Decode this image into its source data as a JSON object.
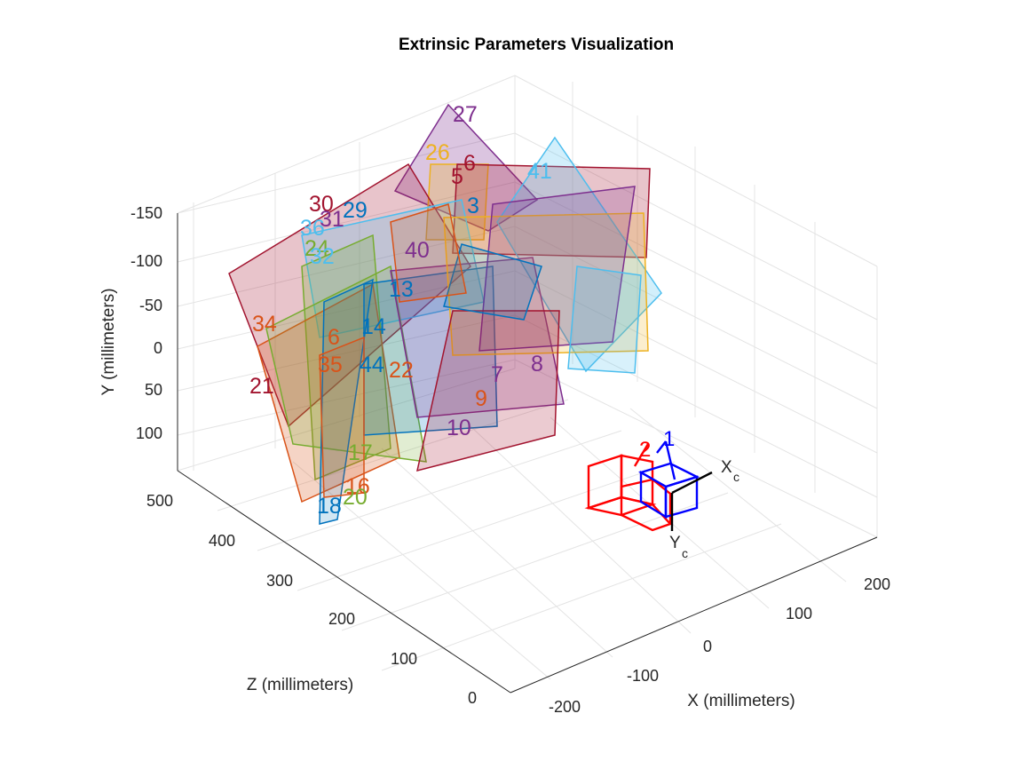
{
  "chart_data": {
    "type": "3d-scatter",
    "title": "Extrinsic Parameters Visualization",
    "xlabel": "X (millimeters)",
    "ylabel": "Y (millimeters)",
    "zlabel": "Z (millimeters)",
    "x_ticks": [
      "-200",
      "-100",
      "0",
      "100",
      "200"
    ],
    "y_ticks": [
      "-150",
      "-100",
      "-50",
      "0",
      "50",
      "100"
    ],
    "z_ticks": [
      "0",
      "100",
      "200",
      "300",
      "400",
      "500"
    ],
    "grid": true,
    "camera_axis_labels": {
      "x": "X",
      "x_sub": "c",
      "y": "Y",
      "y_sub": "c"
    },
    "cameras": [
      {
        "label": "1",
        "color": "#0000ff"
      },
      {
        "label": "2",
        "color": "#ff0000"
      }
    ],
    "boards": [
      {
        "label": "27",
        "color": "#7e2f8e"
      },
      {
        "label": "26",
        "color": "#edb120"
      },
      {
        "label": "6",
        "color": "#a2142f"
      },
      {
        "label": "5",
        "color": "#a2142f"
      },
      {
        "label": "41",
        "color": "#4dbeee"
      },
      {
        "label": "3",
        "color": "#0072bd"
      },
      {
        "label": "30",
        "color": "#a2142f"
      },
      {
        "label": "31",
        "color": "#7e2f8e"
      },
      {
        "label": "29",
        "color": "#0072bd"
      },
      {
        "label": "36",
        "color": "#4dbeee"
      },
      {
        "label": "24",
        "color": "#77ac30"
      },
      {
        "label": "32",
        "color": "#4dbeee"
      },
      {
        "label": "40",
        "color": "#7e2f8e"
      },
      {
        "label": "13",
        "color": "#0072bd"
      },
      {
        "label": "34",
        "color": "#d95319"
      },
      {
        "label": "14",
        "color": "#0072bd"
      },
      {
        "label": "6",
        "color": "#d95319"
      },
      {
        "label": "35",
        "color": "#d95319"
      },
      {
        "label": "44",
        "color": "#0072bd"
      },
      {
        "label": "22",
        "color": "#d95319"
      },
      {
        "label": "21",
        "color": "#a2142f"
      },
      {
        "label": "7",
        "color": "#7e2f8e"
      },
      {
        "label": "8",
        "color": "#7e2f8e"
      },
      {
        "label": "9",
        "color": "#d95319"
      },
      {
        "label": "10",
        "color": "#7e2f8e"
      },
      {
        "label": "17",
        "color": "#77ac30"
      },
      {
        "label": "16",
        "color": "#d95319"
      },
      {
        "label": "20",
        "color": "#77ac30"
      },
      {
        "label": "18",
        "color": "#0072bd"
      }
    ]
  }
}
